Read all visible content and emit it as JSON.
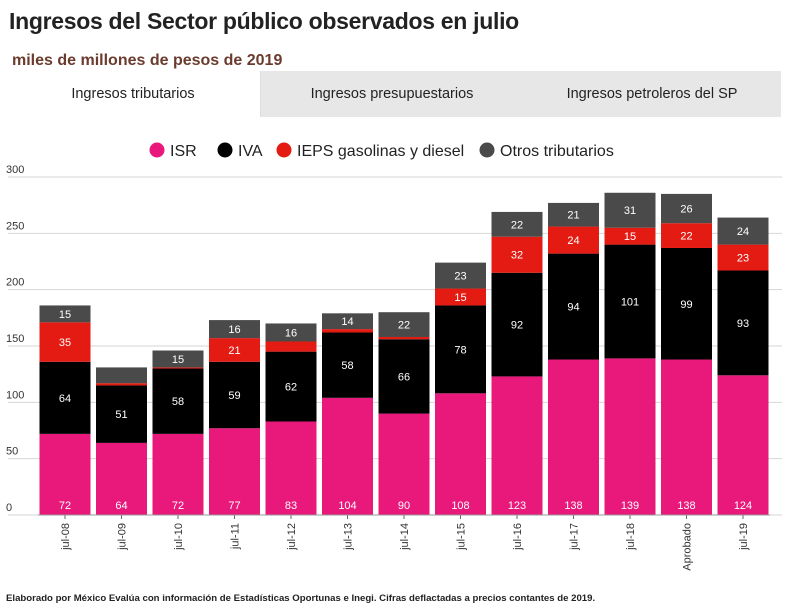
{
  "title": "Ingresos del Sector público observados en julio",
  "subtitle": "miles de millones de pesos de 2019",
  "tabs": [
    {
      "label": "Ingresos tributarios",
      "active": true
    },
    {
      "label": "Ingresos presupuestarios",
      "active": false
    },
    {
      "label": "Ingresos petroleros del SP",
      "active": false
    }
  ],
  "footer": "Elaborado por México Evalúa con información de Estadísticas Oportunas e Inegi. Cifras deflactadas a precios contantes de 2019.",
  "chart_data": {
    "type": "bar",
    "stacked": true,
    "title": "",
    "xlabel": "",
    "ylabel": "",
    "ylim": [
      0,
      300
    ],
    "yticks": [
      0,
      50,
      100,
      150,
      200,
      250,
      300
    ],
    "grid": true,
    "legend_position": "top",
    "categories": [
      "jul-08",
      "jul-09",
      "jul-10",
      "jul-11",
      "jul-12",
      "jul-13",
      "jul-14",
      "jul-15",
      "jul-16",
      "jul-17",
      "jul-18",
      "Aprobado",
      "jul-19"
    ],
    "series": [
      {
        "name": "ISR",
        "color": "#e8197a",
        "values": [
          72,
          64,
          72,
          77,
          83,
          104,
          90,
          108,
          123,
          138,
          139,
          138,
          124
        ],
        "labels": [
          "72",
          "64",
          "72",
          "77",
          "83",
          "104",
          "90",
          "108",
          "123",
          "138",
          "139",
          "138",
          "124"
        ]
      },
      {
        "name": "IVA",
        "color": "#000000",
        "values": [
          64,
          51,
          58,
          59,
          62,
          58,
          66,
          78,
          92,
          94,
          101,
          99,
          93
        ],
        "labels": [
          "64",
          "51",
          "58",
          "59",
          "62",
          "58",
          "66",
          "78",
          "92",
          "94",
          "101",
          "99",
          "93"
        ]
      },
      {
        "name": "IEPS gasolinas y diesel",
        "color": "#e41b13",
        "values": [
          35,
          2,
          1,
          21,
          9,
          3,
          2,
          15,
          32,
          24,
          15,
          22,
          23
        ],
        "labels": [
          "35",
          "",
          "",
          "21",
          "",
          "",
          "",
          "15",
          "32",
          "24",
          "15",
          "22",
          "23"
        ]
      },
      {
        "name": "Otros tributarios",
        "color": "#4a4a4a",
        "values": [
          15,
          14,
          15,
          16,
          16,
          14,
          22,
          23,
          22,
          21,
          31,
          26,
          24
        ],
        "labels": [
          "15",
          "",
          "15",
          "16",
          "16",
          "14",
          "22",
          "23",
          "22",
          "21",
          "31",
          "26",
          "24"
        ]
      }
    ]
  }
}
